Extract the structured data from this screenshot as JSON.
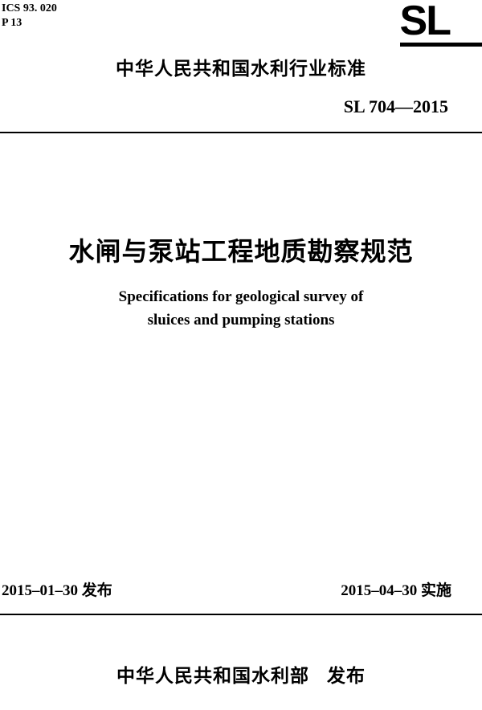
{
  "header": {
    "ics_code": "ICS 93. 020",
    "p_code": "P 13",
    "logo_text": "SL"
  },
  "standard_org": "中华人民共和国水利行业标准",
  "doc_number": "SL 704—2015",
  "title": {
    "chinese": "水闸与泵站工程地质勘察规范",
    "english_line1": "Specifications for geological survey of",
    "english_line2": "sluices and pumping stations"
  },
  "dates": {
    "publish": "2015–01–30 发布",
    "effective": "2015–04–30 实施"
  },
  "publisher": {
    "org": "中华人民共和国水利部",
    "action": "发布"
  }
}
